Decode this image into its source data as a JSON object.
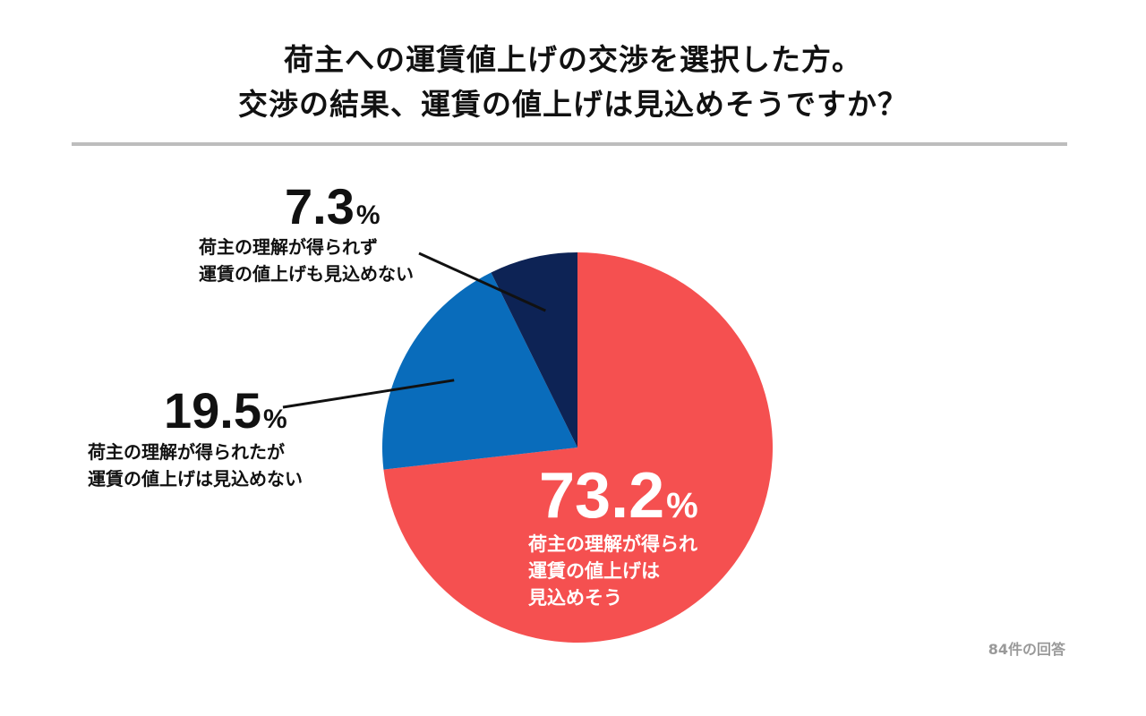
{
  "title_lines": [
    "荷主への運賃値上げの交渉を選択した方。",
    "交渉の結果、運賃の値上げは見込めそうですか？"
  ],
  "note": "84件の回答",
  "colors": {
    "slice_1": "#f55050",
    "slice_2": "#096cbb",
    "slice_3": "#0d2355",
    "divider": "#bdbdbd",
    "note": "#9a9a9a"
  },
  "chart_data": {
    "type": "pie",
    "slices": [
      {
        "value": 73.2,
        "value_label": "73.2",
        "unit": "%",
        "label_lines": [
          "荷主の理解が得られ",
          "運賃の値上げは",
          "見込めそう"
        ]
      },
      {
        "value": 19.5,
        "value_label": "19.5",
        "unit": "%",
        "label_lines": [
          "荷主の理解が得られたが",
          "運賃の値上げは見込めない"
        ]
      },
      {
        "value": 7.3,
        "value_label": "7.3",
        "unit": "%",
        "label_lines": [
          "荷主の理解が得られず",
          "運賃の値上げも見込めない"
        ]
      }
    ]
  }
}
